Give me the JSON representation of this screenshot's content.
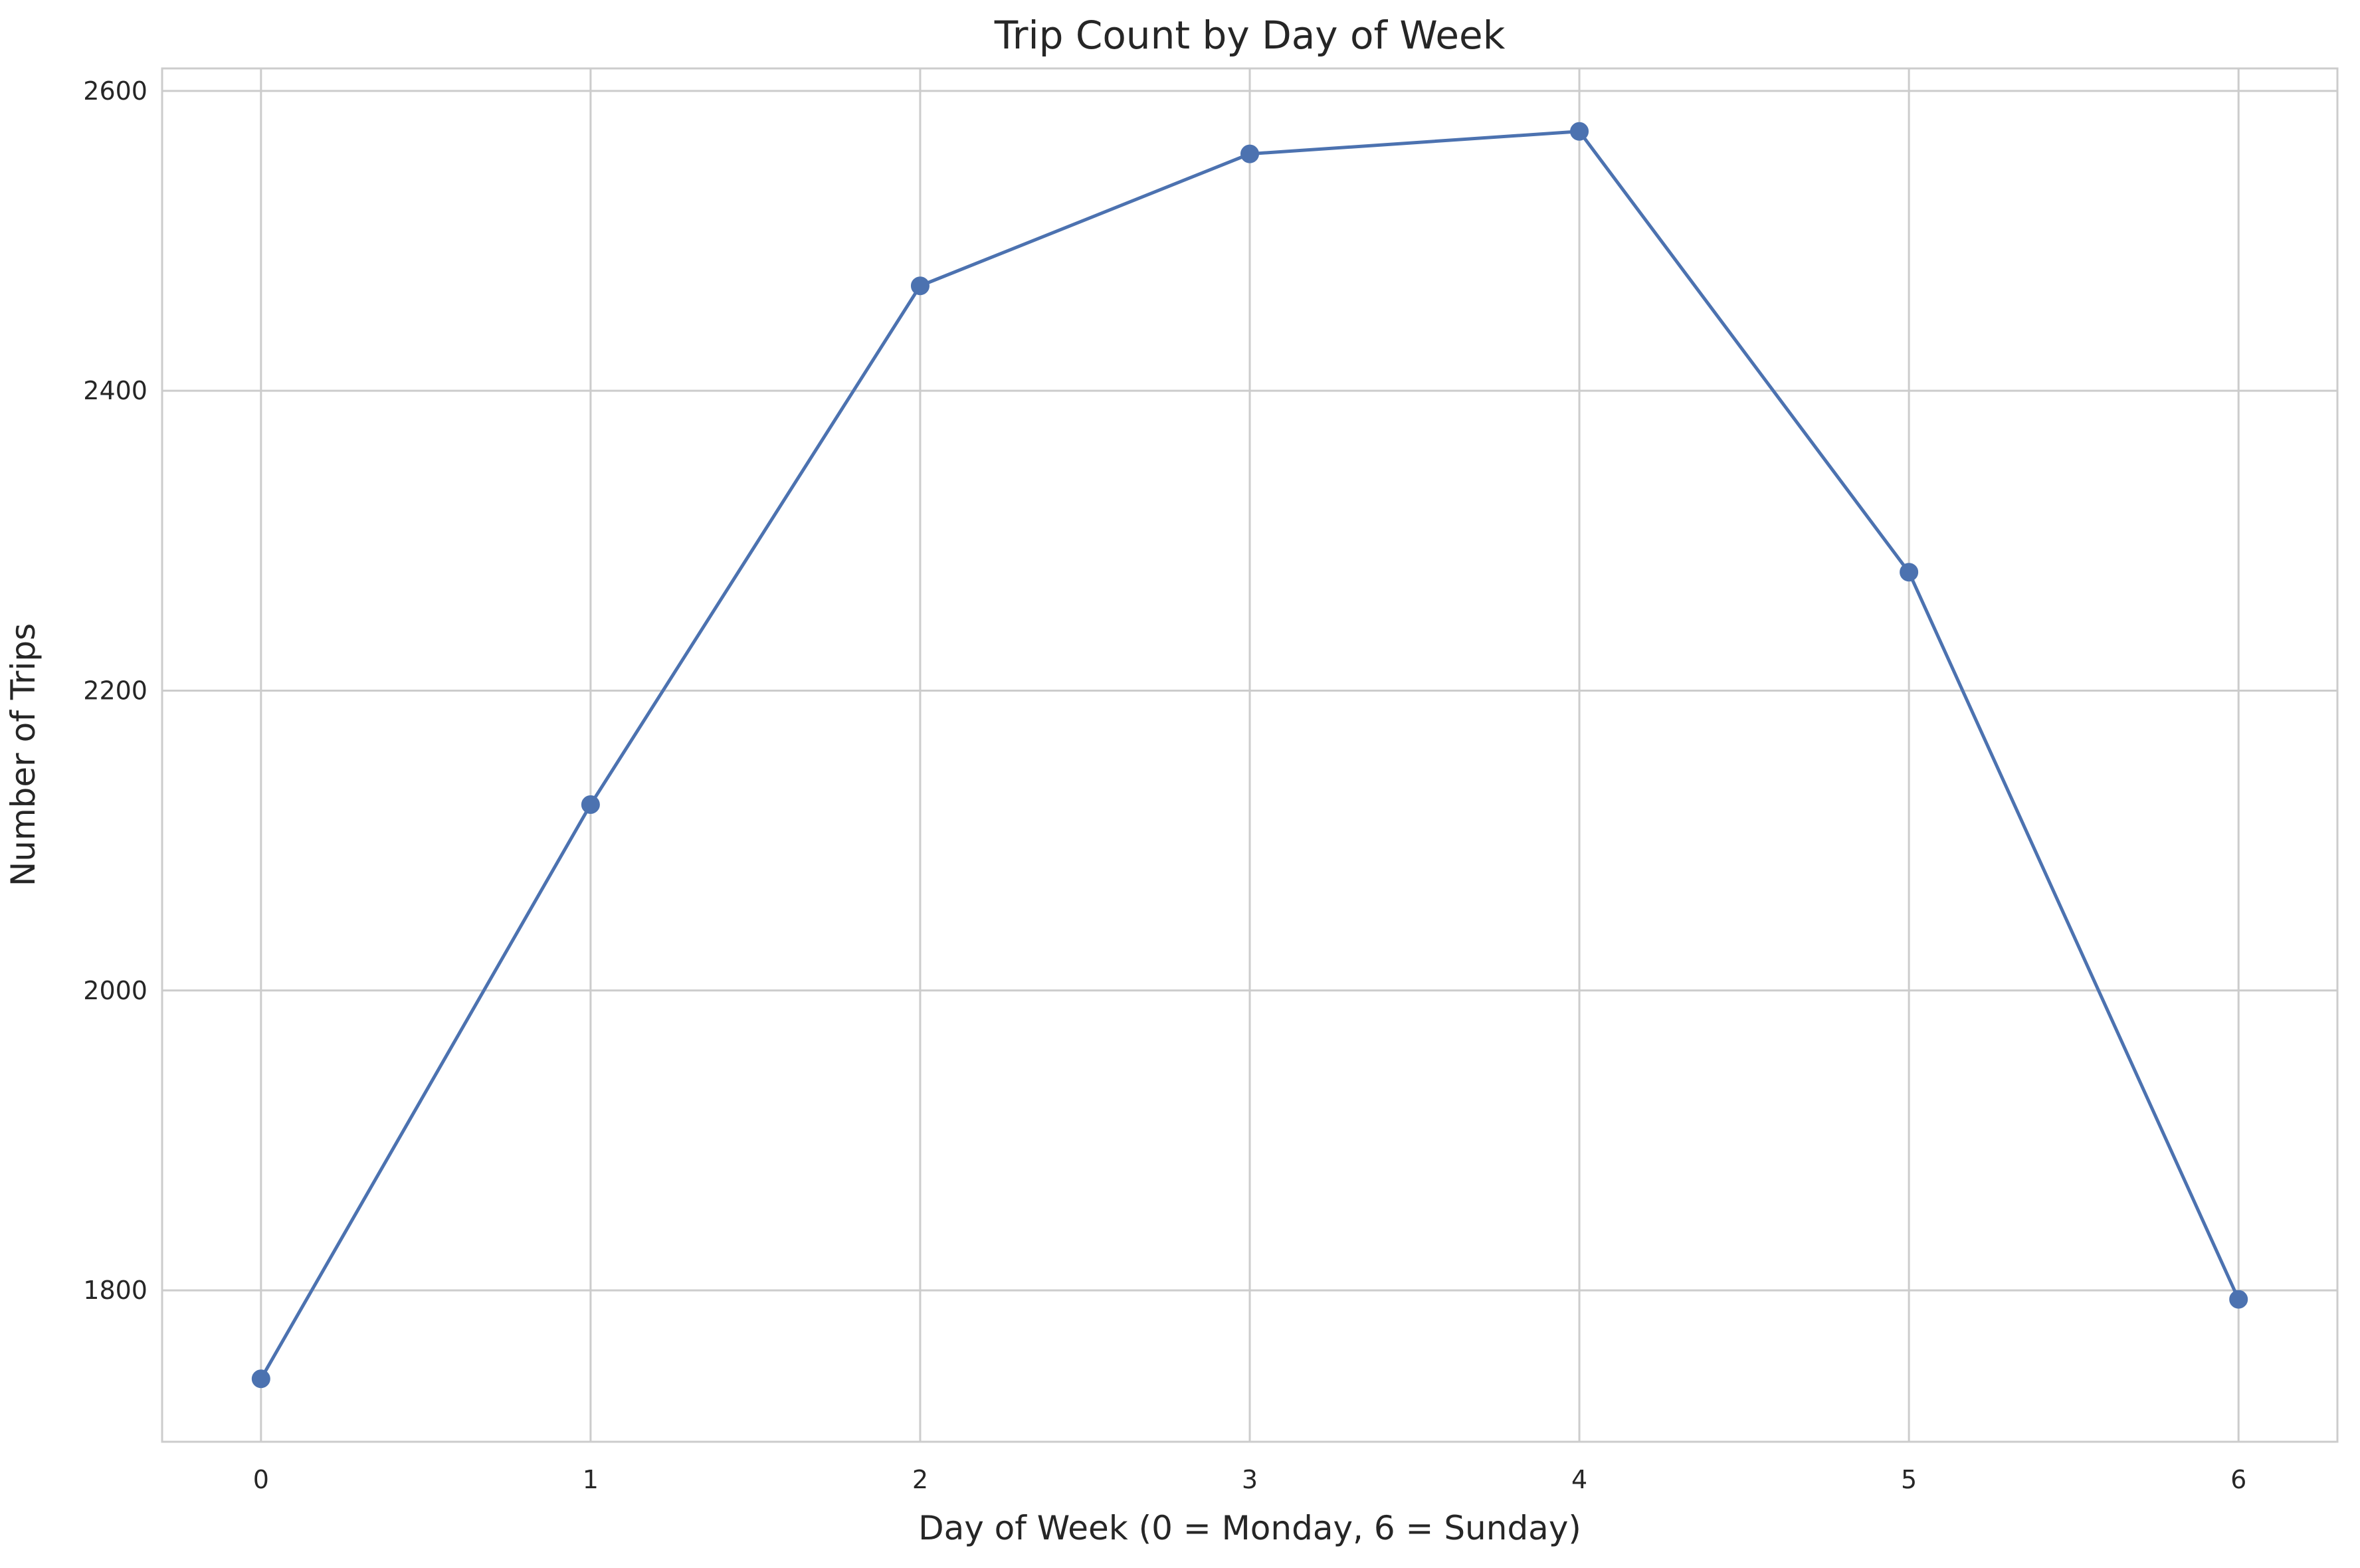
{
  "chart_data": {
    "type": "line",
    "title": "Trip Count by Day of Week",
    "xlabel": "Day of Week (0 = Monday, 6 = Sunday)",
    "ylabel": "Number of Trips",
    "x": [
      0,
      1,
      2,
      3,
      4,
      5,
      6
    ],
    "series": [
      {
        "values": [
          1741,
          2124,
          2470,
          2558,
          2573,
          2279,
          1794
        ]
      }
    ],
    "xlim": [
      -0.3,
      6.3
    ],
    "ylim": [
      1699,
      2615
    ],
    "xticks": [
      0,
      1,
      2,
      3,
      4,
      5,
      6
    ],
    "xtick_labels": [
      "0",
      "1",
      "2",
      "3",
      "4",
      "5",
      "6"
    ],
    "yticks": [
      1800,
      2000,
      2200,
      2400,
      2600
    ],
    "ytick_labels": [
      "1800",
      "2000",
      "2200",
      "2400",
      "2600"
    ],
    "grid": true,
    "marker": "circle",
    "colors": {
      "line": "#4c72b0",
      "grid": "#cccccc",
      "spine": "#cccccc"
    }
  }
}
